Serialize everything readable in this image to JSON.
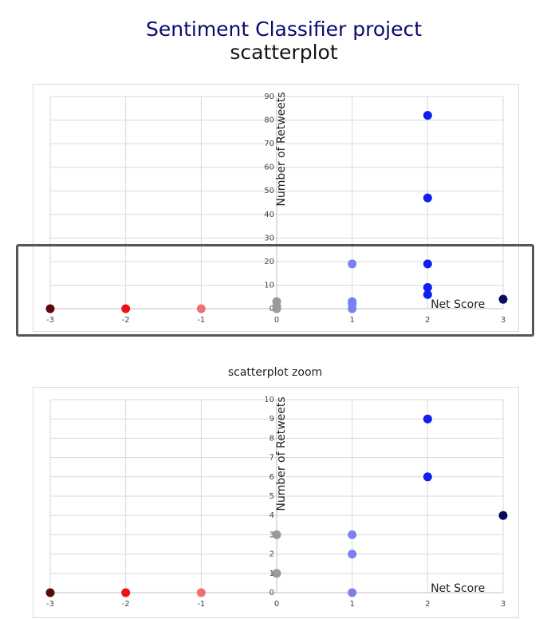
{
  "title": {
    "line1": "Sentiment Classifier project",
    "line2": "scatterplot"
  },
  "chart_data": [
    {
      "type": "scatter",
      "title": "",
      "xlabel": "Net Score",
      "ylabel": "Number of Retweets",
      "xlim": [
        -3,
        3
      ],
      "ylim": [
        0,
        90
      ],
      "xticks": [
        -3,
        -2,
        -1,
        0,
        1,
        2,
        3
      ],
      "yticks": [
        0,
        10,
        20,
        30,
        40,
        50,
        60,
        70,
        80,
        90
      ],
      "grid": true,
      "points": [
        {
          "x": -3,
          "y": 0,
          "color": "#5a0a0a"
        },
        {
          "x": -2,
          "y": 0,
          "color": "#ee1111"
        },
        {
          "x": -1,
          "y": 0,
          "color": "#f07070"
        },
        {
          "x": 0,
          "y": 0,
          "color": "#9a9a9a"
        },
        {
          "x": 0,
          "y": 1,
          "color": "#9a9a9a"
        },
        {
          "x": 0,
          "y": 3,
          "color": "#9a9a9a"
        },
        {
          "x": 1,
          "y": 0,
          "color": "#7b80f0"
        },
        {
          "x": 1,
          "y": 2,
          "color": "#7b80f0"
        },
        {
          "x": 1,
          "y": 3,
          "color": "#7b80f0"
        },
        {
          "x": 1,
          "y": 19,
          "color": "#7b80f0"
        },
        {
          "x": 2,
          "y": 6,
          "color": "#1020f0"
        },
        {
          "x": 2,
          "y": 9,
          "color": "#1020f0"
        },
        {
          "x": 2,
          "y": 19,
          "color": "#1020f0"
        },
        {
          "x": 2,
          "y": 47,
          "color": "#1020f0"
        },
        {
          "x": 2,
          "y": 82,
          "color": "#1020f0"
        },
        {
          "x": 3,
          "y": 4,
          "color": "#0a0a60"
        }
      ]
    },
    {
      "type": "scatter",
      "title": "scatterplot zoom",
      "xlabel": "Net Score",
      "ylabel": "Number of Retweets",
      "xlim": [
        -3,
        3
      ],
      "ylim": [
        0,
        10
      ],
      "xticks": [
        -3,
        -2,
        -1,
        0,
        1,
        2,
        3
      ],
      "yticks": [
        0,
        1,
        2,
        3,
        4,
        5,
        6,
        7,
        8,
        9,
        10
      ],
      "grid": true,
      "points": [
        {
          "x": -3,
          "y": 0,
          "color": "#5a0a0a"
        },
        {
          "x": -2,
          "y": 0,
          "color": "#ee1111"
        },
        {
          "x": -1,
          "y": 0,
          "color": "#f07070"
        },
        {
          "x": 0,
          "y": 1,
          "color": "#9a9a9a"
        },
        {
          "x": 0,
          "y": 3,
          "color": "#9a9a9a"
        },
        {
          "x": 1,
          "y": 0,
          "color": "#7b80f0"
        },
        {
          "x": 1,
          "y": 2,
          "color": "#7b80f0"
        },
        {
          "x": 1,
          "y": 3,
          "color": "#7b80f0"
        },
        {
          "x": 2,
          "y": 6,
          "color": "#1020f0"
        },
        {
          "x": 2,
          "y": 9,
          "color": "#1020f0"
        },
        {
          "x": 3,
          "y": 4,
          "color": "#0a0a60"
        }
      ]
    }
  ]
}
